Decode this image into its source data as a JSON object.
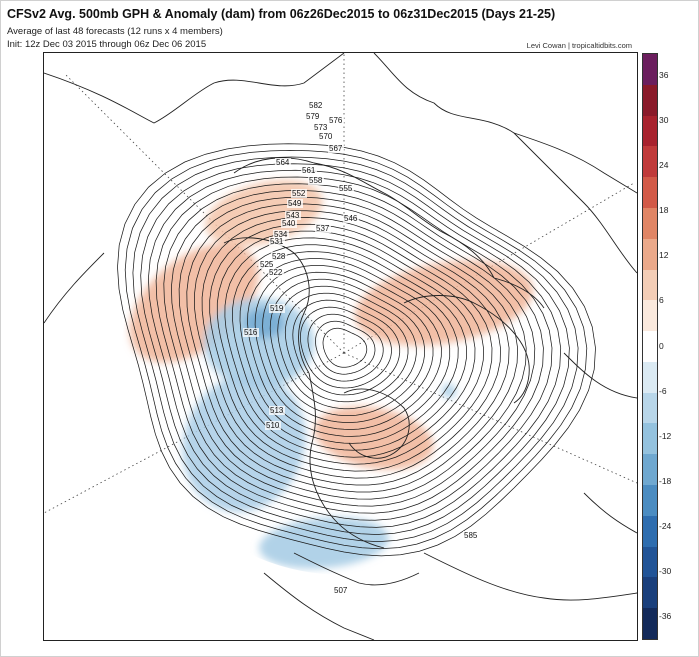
{
  "header": {
    "title": "CFSv2 Avg. 500mb GPH & Anomaly (dam) from 06z26Dec2015 to 06z31Dec2015 (Days 21-25)",
    "subtitle_line1": "Average of last 48 forecasts (12 runs x 4 members)",
    "subtitle_line2": "Init: 12z Dec 03 2015 through 06z Dec 06 2015",
    "credit": "Levi Cowan | tropicaltidbits.com"
  },
  "contour_labels": [
    "582",
    "579",
    "576",
    "573",
    "570",
    "567",
    "564",
    "561",
    "558",
    "555",
    "552",
    "549",
    "546",
    "543",
    "540",
    "537",
    "534",
    "531",
    "528",
    "525",
    "522",
    "519",
    "516",
    "513",
    "510",
    "507",
    "585"
  ],
  "anomaly_regions": [
    {
      "name": "north-pacific-positive",
      "sign": "positive"
    },
    {
      "name": "western-canada-negative",
      "sign": "negative"
    },
    {
      "name": "eurasia-positive",
      "sign": "positive"
    },
    {
      "name": "greenland-eastern-canada-positive",
      "sign": "positive"
    },
    {
      "name": "southern-us-negative",
      "sign": "negative"
    }
  ],
  "colorbar": {
    "labels": [
      "36",
      "30",
      "24",
      "18",
      "12",
      "6",
      "0",
      "-6",
      "-12",
      "-18",
      "-24",
      "-30",
      "-36"
    ],
    "colors": [
      "#6b1e5e",
      "#8a1a2a",
      "#a8222e",
      "#c03a3a",
      "#d25a48",
      "#e08565",
      "#eba98a",
      "#f3cdb6",
      "#fae9dd",
      "#ffffff",
      "#dbeaf3",
      "#b8d6e9",
      "#94c2de",
      "#6fa8d0",
      "#4b8cc1",
      "#2e6daf",
      "#215497",
      "#1a3f7c",
      "#132a5a"
    ]
  }
}
